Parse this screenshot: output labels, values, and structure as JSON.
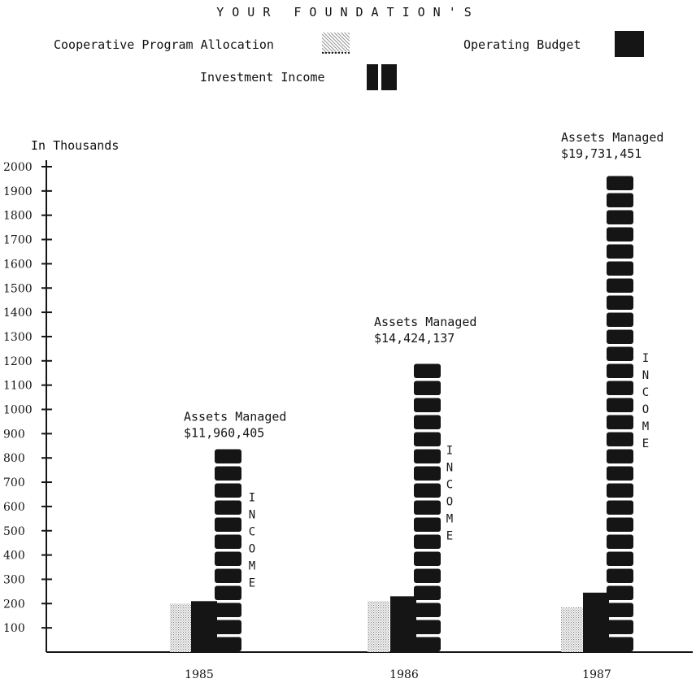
{
  "colors": {
    "ink": "#151515",
    "stipple": "#9a9a9a",
    "background": "#ffffff"
  },
  "chart_data": {
    "type": "bar",
    "title": "YOUR FOUNDATION'S",
    "ylabel": "In Thousands",
    "xlabel": "",
    "ylim": [
      0,
      2000
    ],
    "y_ticks": [
      100,
      200,
      300,
      400,
      500,
      600,
      700,
      800,
      900,
      1000,
      1100,
      1200,
      1300,
      1400,
      1500,
      1600,
      1700,
      1800,
      1900,
      2000
    ],
    "categories": [
      "1985",
      "1986",
      "1987"
    ],
    "series": [
      {
        "name": "Cooperative Program Allocation",
        "values": [
          200,
          210,
          185
        ]
      },
      {
        "name": "Operating Budget",
        "values": [
          210,
          230,
          245
        ]
      },
      {
        "name": "Investment Income",
        "values": [
          840,
          1230,
          1990
        ]
      }
    ],
    "annotations": [
      {
        "label": "Assets Managed",
        "value": "$11,960,405",
        "income_label": "INCOME"
      },
      {
        "label": "Assets Managed",
        "value": "$14,424,137",
        "income_label": "INCOME"
      },
      {
        "label": "Assets Managed",
        "value": "$19,731,451",
        "income_label": "INCOME"
      }
    ],
    "legend": [
      {
        "label": "Cooperative Program Allocation",
        "pattern": "stipple"
      },
      {
        "label": "Operating Budget",
        "pattern": "solid"
      },
      {
        "label": "Investment Income",
        "pattern": "blocks"
      }
    ],
    "legend_position": "top",
    "grid": false
  }
}
